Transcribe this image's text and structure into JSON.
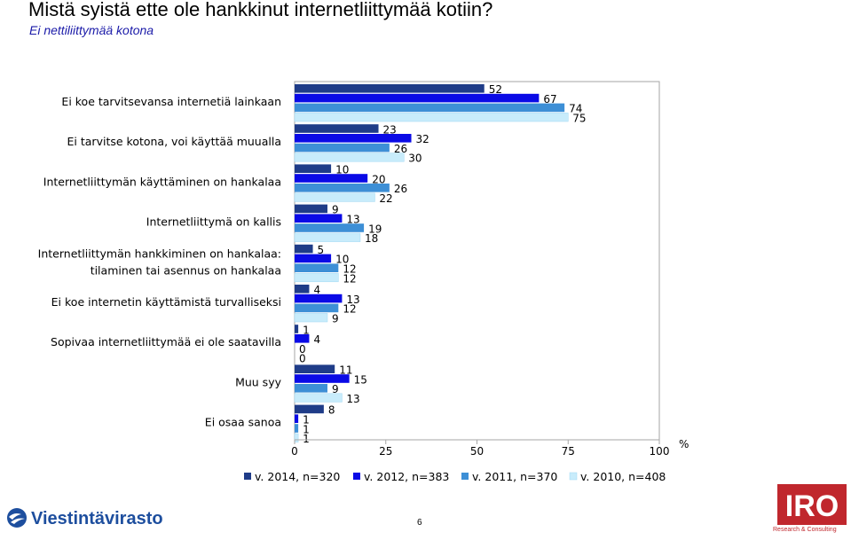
{
  "page": {
    "title": "Mistä syistä ette ole hankkinut internetliittymää kotiin?",
    "subtitle": "Ei nettiliittymää kotona",
    "page_number": "6",
    "logo_left": "Viestintävirasto",
    "logo_right": "IRO",
    "logo_right_sub": "Research & Consulting"
  },
  "chart_data": {
    "type": "bar",
    "orientation": "horizontal",
    "categories": [
      [
        "Ei koe tarvitsevansa internetiä lainkaan"
      ],
      [
        "Ei tarvitse kotona, voi käyttää muualla"
      ],
      [
        "Internetliittymän käyttäminen on hankalaa"
      ],
      [
        "Internetliittymä on kallis"
      ],
      [
        "Internetliittymän hankkiminen on hankalaa:",
        "tilaminen tai asennus on hankalaa"
      ],
      [
        "Ei koe internetin käyttämistä turvalliseksi"
      ],
      [
        "Sopivaa internetliittymää ei ole saatavilla"
      ],
      [
        "Muu syy"
      ],
      [
        "Ei osaa sanoa"
      ]
    ],
    "series": [
      {
        "name": "v. 2014, n=320",
        "color": "#1f3c88",
        "values": [
          52,
          23,
          10,
          9,
          5,
          4,
          1,
          11,
          8
        ]
      },
      {
        "name": "v. 2012, n=383",
        "color": "#0a0ae6",
        "values": [
          67,
          32,
          20,
          13,
          10,
          13,
          4,
          15,
          1
        ]
      },
      {
        "name": "v. 2011, n=370",
        "color": "#3d8fd6",
        "values": [
          74,
          26,
          26,
          19,
          12,
          12,
          0,
          9,
          1
        ]
      },
      {
        "name": "v. 2010, n=408",
        "color": "#c8ecfb",
        "values": [
          75,
          30,
          22,
          18,
          12,
          9,
          0,
          13,
          1
        ]
      }
    ],
    "xlim": [
      0,
      100
    ],
    "xticks": [
      0,
      25,
      50,
      75,
      100
    ],
    "xunit": "%",
    "grid": false,
    "legend_position": "bottom"
  }
}
